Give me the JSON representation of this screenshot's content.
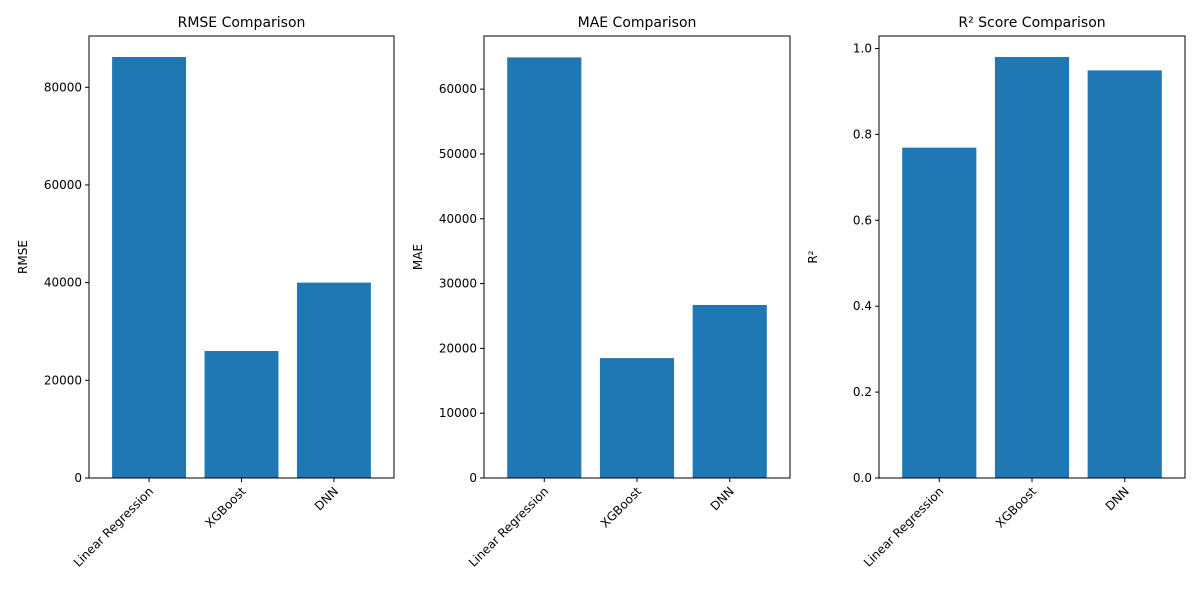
{
  "colors": {
    "bar": "#1f77b4",
    "axis": "#000000",
    "background": "#ffffff"
  },
  "chart_data": [
    {
      "type": "bar",
      "title": "RMSE Comparison",
      "xlabel": "",
      "ylabel": "RMSE",
      "categories": [
        "Linear Regression",
        "XGBoost",
        "DNN"
      ],
      "values": [
        86200,
        26000,
        40000
      ],
      "ylim": [
        0,
        90500
      ],
      "yticks": [
        0,
        20000,
        40000,
        60000,
        80000
      ],
      "ytick_labels": [
        "0",
        "20000",
        "40000",
        "60000",
        "80000"
      ],
      "grid": false
    },
    {
      "type": "bar",
      "title": "MAE Comparison",
      "xlabel": "",
      "ylabel": "MAE",
      "categories": [
        "Linear Regression",
        "XGBoost",
        "DNN"
      ],
      "values": [
        64900,
        18500,
        26700
      ],
      "ylim": [
        0,
        68200
      ],
      "yticks": [
        0,
        10000,
        20000,
        30000,
        40000,
        50000,
        60000
      ],
      "ytick_labels": [
        "0",
        "10000",
        "20000",
        "30000",
        "40000",
        "50000",
        "60000"
      ],
      "grid": false
    },
    {
      "type": "bar",
      "title": "R² Score Comparison",
      "xlabel": "",
      "ylabel": "R²",
      "categories": [
        "Linear Regression",
        "XGBoost",
        "DNN"
      ],
      "values": [
        0.769,
        0.98,
        0.949
      ],
      "ylim": [
        0,
        1.029
      ],
      "yticks": [
        0,
        0.2,
        0.4,
        0.6,
        0.8,
        1.0
      ],
      "ytick_labels": [
        "0.0",
        "0.2",
        "0.4",
        "0.6",
        "0.8",
        "1.0"
      ],
      "grid": false
    }
  ]
}
